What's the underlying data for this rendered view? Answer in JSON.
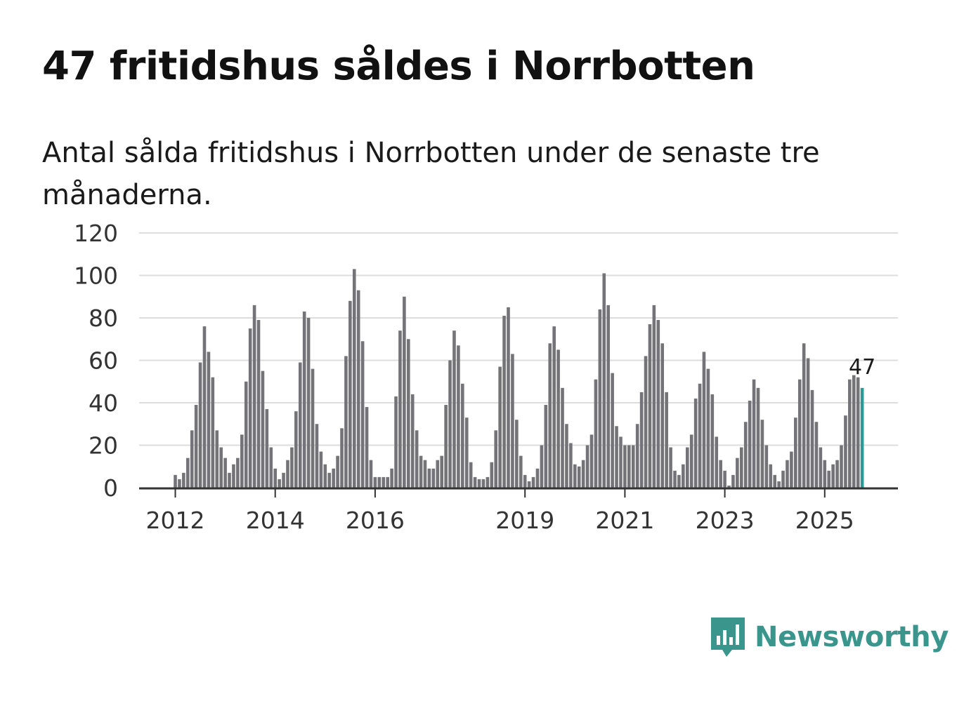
{
  "title": "47 fritidshus såldes i Norrbotten",
  "subtitle": "Antal sålda fritidshus i Norrbotten under de senaste tre månaderna.",
  "brand": {
    "name": "Newsworthy",
    "icon": "bar-chart-bubble-icon"
  },
  "colors": {
    "bar": "#747377",
    "highlight": "#2e9a94",
    "grid": "#dddddd",
    "axis": "#333333",
    "brand": "#3a968c"
  },
  "chart_data": {
    "type": "bar",
    "title": "",
    "xlabel": "",
    "ylabel": "",
    "ylim": [
      0,
      120
    ],
    "yticks": [
      "0",
      "20",
      "40",
      "60",
      "80",
      "100",
      "120"
    ],
    "xtick_labels": [
      "2012",
      "2014",
      "2016",
      "2019",
      "2021",
      "2023",
      "2025"
    ],
    "xtick_years": [
      2012,
      2014,
      2016,
      2019,
      2021,
      2023,
      2025
    ],
    "first_month": "2012-01",
    "grid": true,
    "highlight_last": true,
    "last_value_label": "47",
    "values": [
      6,
      4,
      7,
      14,
      27,
      39,
      59,
      76,
      64,
      52,
      27,
      19,
      14,
      7,
      11,
      14,
      25,
      50,
      75,
      86,
      79,
      55,
      37,
      19,
      9,
      4,
      7,
      13,
      19,
      36,
      59,
      83,
      80,
      56,
      30,
      17,
      11,
      7,
      9,
      15,
      28,
      62,
      88,
      103,
      93,
      69,
      38,
      13,
      5,
      5,
      5,
      5,
      9,
      43,
      74,
      90,
      70,
      44,
      27,
      15,
      13,
      9,
      9,
      13,
      15,
      39,
      60,
      74,
      67,
      49,
      33,
      12,
      5,
      4,
      4,
      5,
      12,
      27,
      57,
      81,
      85,
      63,
      32,
      15,
      6,
      3,
      5,
      9,
      20,
      39,
      68,
      76,
      65,
      47,
      30,
      21,
      11,
      10,
      13,
      20,
      25,
      51,
      84,
      101,
      86,
      54,
      29,
      24,
      20,
      20,
      20,
      30,
      45,
      62,
      77,
      86,
      79,
      68,
      45,
      19,
      8,
      6,
      11,
      19,
      25,
      42,
      49,
      64,
      56,
      44,
      24,
      13,
      8,
      1,
      6,
      14,
      19,
      31,
      41,
      51,
      47,
      32,
      20,
      11,
      6,
      3,
      8,
      13,
      17,
      33,
      51,
      68,
      61,
      46,
      31,
      19,
      13,
      8,
      11,
      13,
      20,
      34,
      51,
      53,
      52,
      47
    ]
  }
}
